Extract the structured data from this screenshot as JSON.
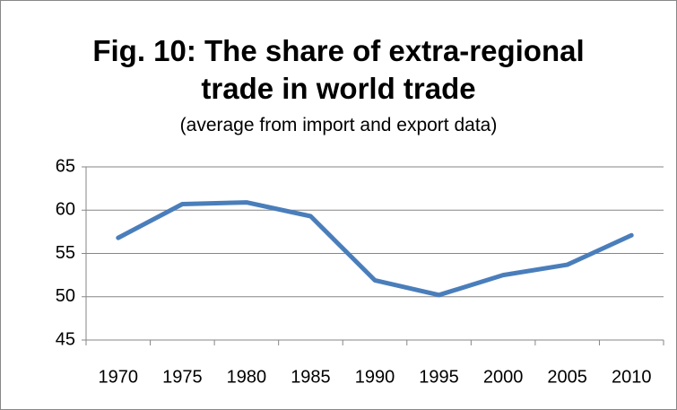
{
  "chart_data": {
    "type": "line",
    "title": "Fig. 10: The share of extra-regional trade in world trade",
    "subtitle": "(average from import and export data)",
    "categories": [
      "1970",
      "1975",
      "1980",
      "1985",
      "1990",
      "1995",
      "2000",
      "2005",
      "2010"
    ],
    "values": [
      56.8,
      60.7,
      60.9,
      59.3,
      51.9,
      50.2,
      52.5,
      53.7,
      57.1
    ],
    "color": "#4a7ebb",
    "ylim": [
      45,
      65
    ],
    "yticks": [
      45,
      50,
      55,
      60,
      65
    ],
    "grid": true
  }
}
